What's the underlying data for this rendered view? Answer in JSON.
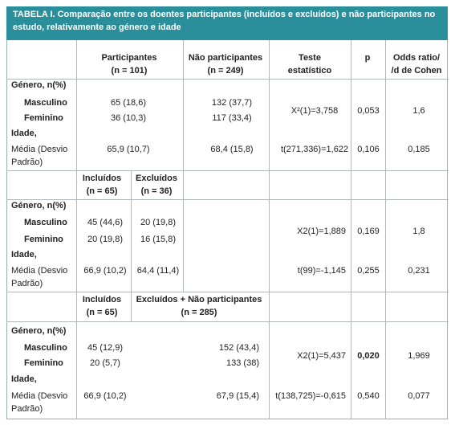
{
  "title": "TABELA I. Comparação entre os doentes participantes (incluídos e excluídos) e não participantes no estudo, relativamente ao género e idade",
  "sections": [
    {
      "header": [
        {
          "lines": [
            "Participantes",
            "(n = 101)"
          ]
        },
        {
          "lines": [
            "Não participantes",
            "(n = 249)"
          ]
        },
        {
          "lines": [
            "Teste",
            "estatístico"
          ]
        },
        {
          "lines": [
            "p"
          ]
        },
        {
          "lines": [
            "Odds ratio/",
            "/d de Cohen"
          ]
        }
      ],
      "gender": {
        "label": "Género, n(%)",
        "rows": [
          {
            "label": "Masculino",
            "values": [
              "65 (18,6)",
              "132 (37,7)"
            ]
          },
          {
            "label": "Feminino",
            "values": [
              "36 (10,3)",
              "117 (33,4)"
            ]
          }
        ],
        "test": "X²(1)=3,758",
        "p": "0,053",
        "effect": "1,6"
      },
      "age": {
        "label": "Idade,",
        "sublabel": [
          "Média (Desvio",
          "Padrão)"
        ],
        "values": [
          "65,9 (10,7)",
          "68,4 (15,8)"
        ],
        "test": "t(271,336)=1,622",
        "p": "0,106",
        "effect": "0,185"
      }
    },
    {
      "header": [
        {
          "lines": [
            "Incluídos",
            "(n = 65)"
          ]
        },
        {
          "lines": [
            "Excluídos",
            "(n = 36)"
          ]
        }
      ],
      "gender": {
        "label": "Género, n(%)",
        "rows": [
          {
            "label": "Masculino",
            "values": [
              "45 (44,6)",
              "20 (19,8)"
            ]
          },
          {
            "label": "Feminino",
            "values": [
              "20 (19,8)",
              "16 (15,8)"
            ]
          }
        ],
        "test": "X2(1)=1,889",
        "p": "0,169",
        "effect": "1,8"
      },
      "age": {
        "label": "Idade,",
        "sublabel": [
          "Média (Desvio",
          "Padrão)"
        ],
        "values": [
          "66,9 (10,2)",
          "64,4 (11,4)"
        ],
        "test": "t(99)=-1,145",
        "p": "0,255",
        "effect": "0,231"
      }
    },
    {
      "header": [
        {
          "lines": [
            "Incluídos",
            "(n = 65)"
          ]
        },
        {
          "lines": [
            "Excluídos + Não participantes",
            "(n = 285)"
          ]
        }
      ],
      "gender": {
        "label": "Género, n(%)",
        "rows": [
          {
            "label": "Masculino",
            "values": [
              "45 (12,9)",
              "152 (43,4)"
            ]
          },
          {
            "label": "Feminino",
            "values": [
              "20 (5,7)",
              "133 (38)"
            ]
          }
        ],
        "test": "X2(1)=5,437",
        "p": "0,020",
        "effect": "1,969"
      },
      "age": {
        "label": "Idade,",
        "sublabel": [
          "Média (Desvio",
          "Padrão)"
        ],
        "values": [
          "66,9 (10,2)",
          "67,9 (15,4)"
        ],
        "test": "t(138,725)=-0,615",
        "p": "0,540",
        "effect": "0,077"
      }
    }
  ]
}
